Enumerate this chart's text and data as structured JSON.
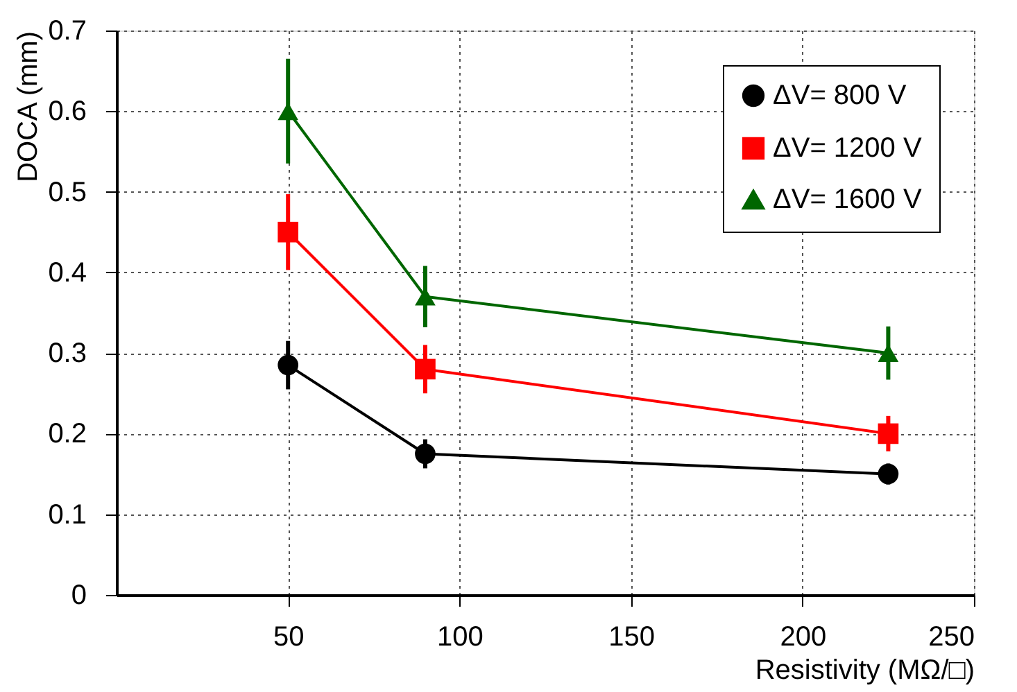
{
  "chart_data": {
    "type": "line",
    "xlabel": "Resistivity (MΩ/□)",
    "ylabel": "DOCA (mm)",
    "x": [
      50,
      90,
      225
    ],
    "series": [
      {
        "name": "ΔV= 800 V",
        "color": "#000000",
        "marker": "circle",
        "values": [
          0.285,
          0.175,
          0.15
        ],
        "errors": [
          0.03,
          0.018,
          0.013
        ]
      },
      {
        "name": "ΔV= 1200 V",
        "color": "#ff0000",
        "marker": "square",
        "values": [
          0.45,
          0.28,
          0.2
        ],
        "errors": [
          0.047,
          0.03,
          0.022
        ]
      },
      {
        "name": "ΔV= 1600 V",
        "color": "#006600",
        "marker": "triangle",
        "values": [
          0.6,
          0.37,
          0.3
        ],
        "errors": [
          0.065,
          0.038,
          0.033
        ]
      }
    ],
    "xlim": [
      0,
      250
    ],
    "xticks": [
      50,
      100,
      150,
      200,
      250
    ],
    "ylim": [
      0,
      0.7
    ],
    "yticks": [
      0,
      0.1,
      0.2,
      0.3,
      0.4,
      0.5,
      0.6,
      0.7
    ],
    "grid": true,
    "legend": "top right",
    "line_style": "solid"
  }
}
